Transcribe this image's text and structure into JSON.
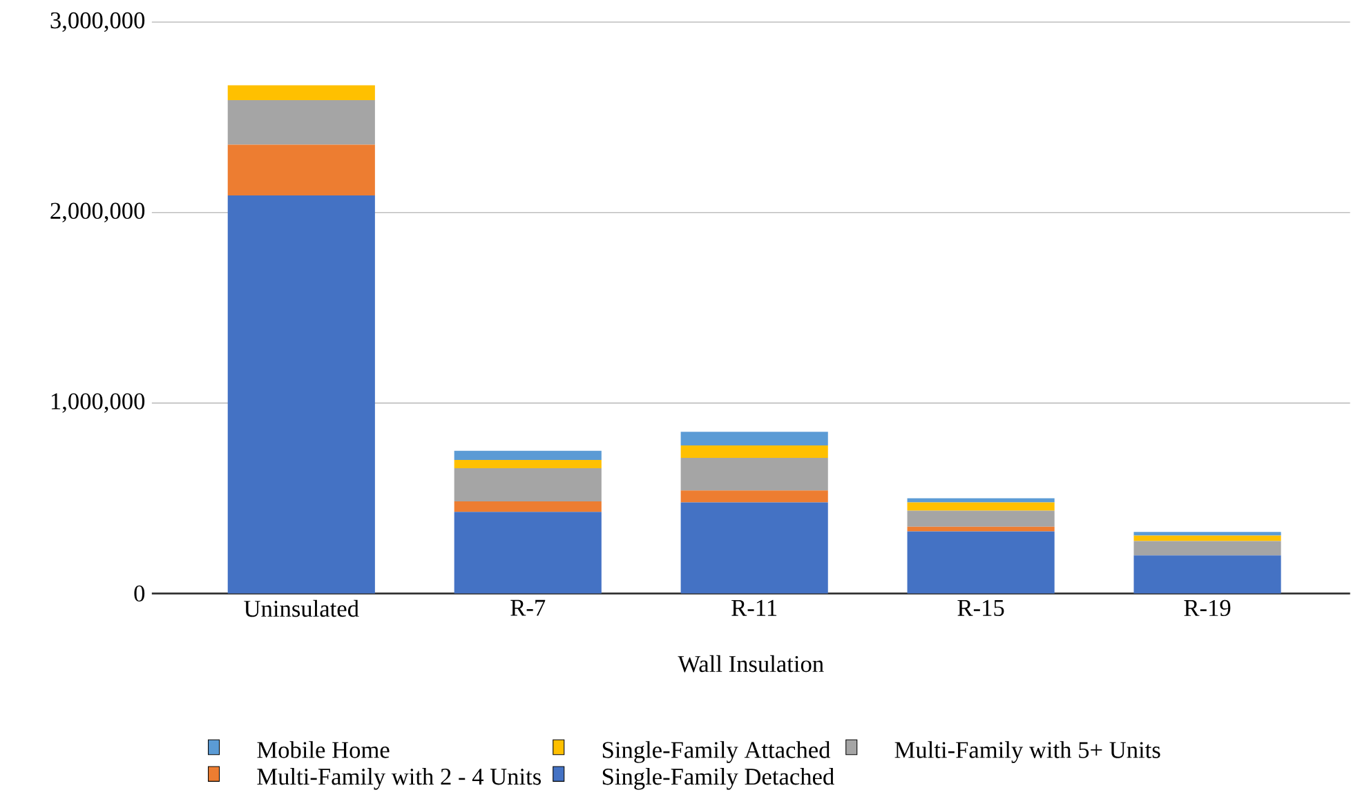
{
  "chart_data": {
    "type": "bar",
    "stacked": true,
    "xlabel": "Wall Insulation",
    "categories": [
      "Uninsulated",
      "R-7",
      "R-11",
      "R-15",
      "R-19"
    ],
    "series": [
      {
        "name": "Single-Family Detached",
        "color": "#4472c4",
        "values": [
          2090000,
          428000,
          478000,
          326000,
          200000
        ]
      },
      {
        "name": "Multi-Family with 2 - 4 Units",
        "color": "#ed7d31",
        "values": [
          266000,
          56000,
          63000,
          24000,
          0
        ]
      },
      {
        "name": "Multi-Family with 5+ Units",
        "color": "#a5a5a5",
        "values": [
          234000,
          174000,
          171000,
          85000,
          75000
        ]
      },
      {
        "name": "Single-Family Attached",
        "color": "#ffc000",
        "values": [
          78000,
          43000,
          65000,
          43000,
          29000
        ]
      },
      {
        "name": "Mobile Home",
        "color": "#5b9bd5",
        "values": [
          0,
          48000,
          72000,
          22000,
          19000
        ]
      }
    ],
    "ylim": [
      0,
      3000000
    ],
    "yticks": [
      {
        "value": 0,
        "label": "0"
      },
      {
        "value": 1000000,
        "label": "1,000,000"
      },
      {
        "value": 2000000,
        "label": "2,000,000"
      },
      {
        "value": 3000000,
        "label": "3,000,000"
      }
    ],
    "grid": "y",
    "legend": "bottom"
  }
}
